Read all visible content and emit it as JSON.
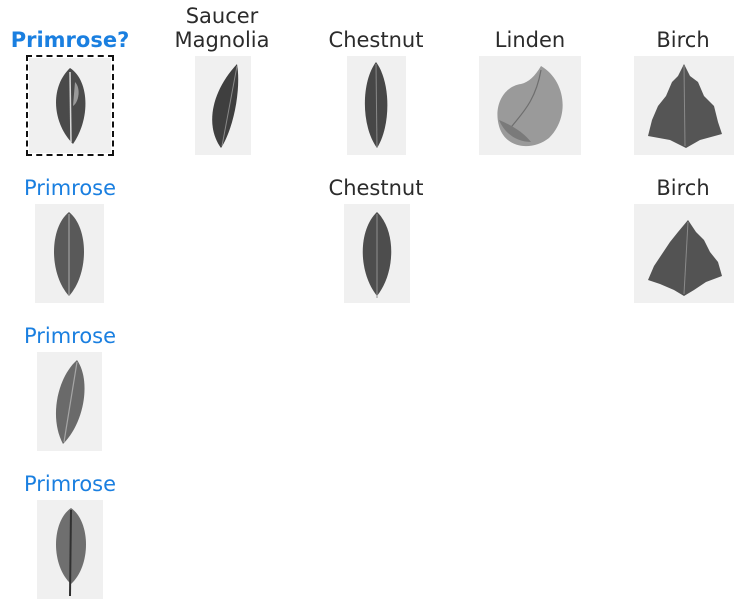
{
  "query": {
    "label": "Primrose?"
  },
  "columns": [
    {
      "label": "Saucer\nMagnolia"
    },
    {
      "label": "Chestnut"
    },
    {
      "label": "Linden"
    },
    {
      "label": "Birch"
    }
  ],
  "matches": [
    {
      "label": "Primrose"
    },
    {
      "label": "Chestnut"
    },
    {
      "label": "Birch"
    },
    {
      "label": "Primrose"
    },
    {
      "label": "Primrose"
    }
  ],
  "colors": {
    "query_text": "#1a7fe0",
    "match_text": "#1a7fe0",
    "default_text": "#2b2b2b"
  }
}
